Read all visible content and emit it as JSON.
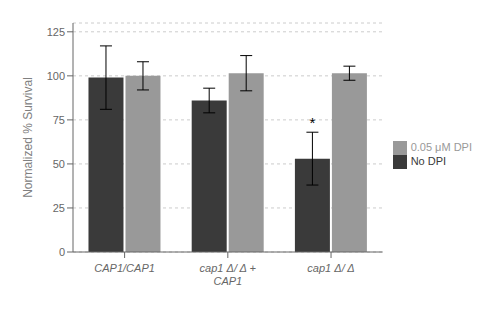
{
  "chart_data": {
    "type": "bar",
    "categories": [
      "CAP1/CAP1",
      "cap1 Δ/ Δ +\nCAP1",
      "cap1 Δ/ Δ"
    ],
    "series": [
      {
        "name": "No DPI",
        "color": "#3a3a3a",
        "values": [
          99,
          86,
          53
        ],
        "errors": [
          18,
          7,
          15
        ]
      },
      {
        "name": "0.05 μM DPI",
        "color": "#999999",
        "values": [
          100,
          101.5,
          101.5
        ],
        "errors": [
          8,
          10,
          4
        ]
      }
    ],
    "ylabel": "Normalized  % Survival",
    "ylim": [
      0,
      130
    ],
    "yticks": [
      0,
      25,
      50,
      75,
      100,
      125
    ],
    "grid": true,
    "legend": "right",
    "annotations": [
      {
        "text": "*",
        "category": "cap1 Δ/ Δ",
        "series": "No DPI",
        "y": 69
      }
    ]
  }
}
